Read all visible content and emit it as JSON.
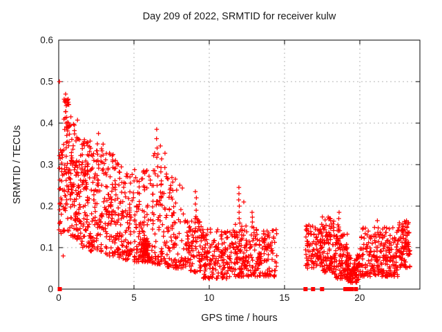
{
  "window": {
    "title": "Day 209 of 2022, SRMTID for receiver kulw"
  },
  "chart_data": {
    "type": "scatter",
    "title": "Day 209 of 2022, SRMTID for receiver kulw",
    "xlabel": "GPS time / hours",
    "ylabel": "SRMTID / TECUs",
    "xlim": [
      0,
      24
    ],
    "ylim": [
      0,
      0.6
    ],
    "xticks": [
      0,
      5,
      10,
      15,
      20
    ],
    "xtick_labels": [
      "0",
      "5",
      "10",
      "15",
      "20"
    ],
    "yticks": [
      0,
      0.1,
      0.2,
      0.3,
      0.4,
      0.5,
      0.6
    ],
    "ytick_labels": [
      "0",
      "0.1",
      "0.2",
      "0.3",
      "0.4",
      "0.5",
      "0.6"
    ],
    "grid": true,
    "legend": "none",
    "marker": "plus",
    "marker_color": "#ff0000",
    "zero_marker": "filled-square",
    "grid_color": "#b6b6b6",
    "border_color": "#000000",
    "segments": [
      {
        "x0": 0.02,
        "x1": 0.35,
        "n": 35,
        "y0": 0.13,
        "y1": 0.34,
        "skew": 1.0
      },
      {
        "x0": 0.3,
        "x1": 0.75,
        "n": 70,
        "y0": 0.14,
        "y1": 0.46,
        "skew": 1.3
      },
      {
        "x0": 0.75,
        "x1": 1.3,
        "n": 90,
        "y0": 0.12,
        "y1": 0.42,
        "skew": 1.4
      },
      {
        "x0": 1.3,
        "x1": 2.1,
        "n": 110,
        "y0": 0.1,
        "y1": 0.37,
        "skew": 1.3
      },
      {
        "x0": 2.1,
        "x1": 3.0,
        "n": 100,
        "y0": 0.09,
        "y1": 0.35,
        "skew": 1.4
      },
      {
        "x0": 3.0,
        "x1": 4.0,
        "n": 110,
        "y0": 0.08,
        "y1": 0.33,
        "skew": 1.4
      },
      {
        "x0": 4.0,
        "x1": 5.0,
        "n": 95,
        "y0": 0.07,
        "y1": 0.3,
        "skew": 1.5
      },
      {
        "x0": 5.0,
        "x1": 6.2,
        "n": 120,
        "y0": 0.065,
        "y1": 0.29,
        "skew": 1.8
      },
      {
        "x0": 5.4,
        "x1": 6.0,
        "n": 55,
        "y0": 0.075,
        "y1": 0.12,
        "skew": 1.0
      },
      {
        "x0": 6.2,
        "x1": 7.2,
        "n": 90,
        "y0": 0.06,
        "y1": 0.33,
        "skew": 1.6
      },
      {
        "x0": 7.2,
        "x1": 8.3,
        "n": 90,
        "y0": 0.05,
        "y1": 0.27,
        "skew": 1.7
      },
      {
        "x0": 8.3,
        "x1": 9.6,
        "n": 110,
        "y0": 0.04,
        "y1": 0.17,
        "skew": 1.3
      },
      {
        "x0": 9.6,
        "x1": 11.5,
        "n": 160,
        "y0": 0.025,
        "y1": 0.145,
        "skew": 1.2
      },
      {
        "x0": 11.5,
        "x1": 12.6,
        "n": 110,
        "y0": 0.03,
        "y1": 0.16,
        "skew": 1.3
      },
      {
        "x0": 12.6,
        "x1": 14.5,
        "n": 150,
        "y0": 0.03,
        "y1": 0.15,
        "skew": 1.3
      },
      {
        "x0": 16.4,
        "x1": 17.4,
        "n": 90,
        "y0": 0.05,
        "y1": 0.155,
        "skew": 1.2
      },
      {
        "x0": 17.4,
        "x1": 18.3,
        "n": 110,
        "y0": 0.04,
        "y1": 0.175,
        "skew": 1.3
      },
      {
        "x0": 18.3,
        "x1": 19.2,
        "n": 110,
        "y0": 0.025,
        "y1": 0.16,
        "skew": 1.4
      },
      {
        "x0": 19.2,
        "x1": 20.0,
        "n": 100,
        "y0": 0.015,
        "y1": 0.085,
        "skew": 1.1
      },
      {
        "x0": 20.0,
        "x1": 21.5,
        "n": 130,
        "y0": 0.03,
        "y1": 0.15,
        "skew": 1.4
      },
      {
        "x0": 21.5,
        "x1": 22.6,
        "n": 110,
        "y0": 0.03,
        "y1": 0.15,
        "skew": 1.4
      },
      {
        "x0": 22.6,
        "x1": 23.35,
        "n": 90,
        "y0": 0.05,
        "y1": 0.165,
        "skew": 1.2
      }
    ],
    "spikes": [
      {
        "x": 0.5,
        "y0": 0.4,
        "y1": 0.47,
        "n": 6
      },
      {
        "x": 2.62,
        "y0": 0.3,
        "y1": 0.375,
        "n": 4
      },
      {
        "x": 6.55,
        "y0": 0.25,
        "y1": 0.385,
        "n": 7
      },
      {
        "x": 6.8,
        "y0": 0.22,
        "y1": 0.345,
        "n": 5
      },
      {
        "x": 9.1,
        "y0": 0.16,
        "y1": 0.235,
        "n": 6
      },
      {
        "x": 12.0,
        "y0": 0.17,
        "y1": 0.245,
        "n": 6
      },
      {
        "x": 12.85,
        "y0": 0.15,
        "y1": 0.185,
        "n": 4
      },
      {
        "x": 18.6,
        "y0": 0.14,
        "y1": 0.185,
        "n": 4
      },
      {
        "x": 21.2,
        "y0": 0.13,
        "y1": 0.165,
        "n": 3
      },
      {
        "x": 23.1,
        "y0": 0.12,
        "y1": 0.165,
        "n": 4
      }
    ],
    "outlier_points": [
      [
        0.05,
        0.5
      ],
      [
        0.3,
        0.08
      ],
      [
        12.3,
        0.21
      ],
      [
        22.2,
        0.148
      ]
    ],
    "zero_value_times": [
      0.07,
      16.4,
      16.9,
      17.5,
      19.05,
      19.13,
      19.21,
      19.29,
      19.38,
      19.46,
      19.75
    ]
  }
}
